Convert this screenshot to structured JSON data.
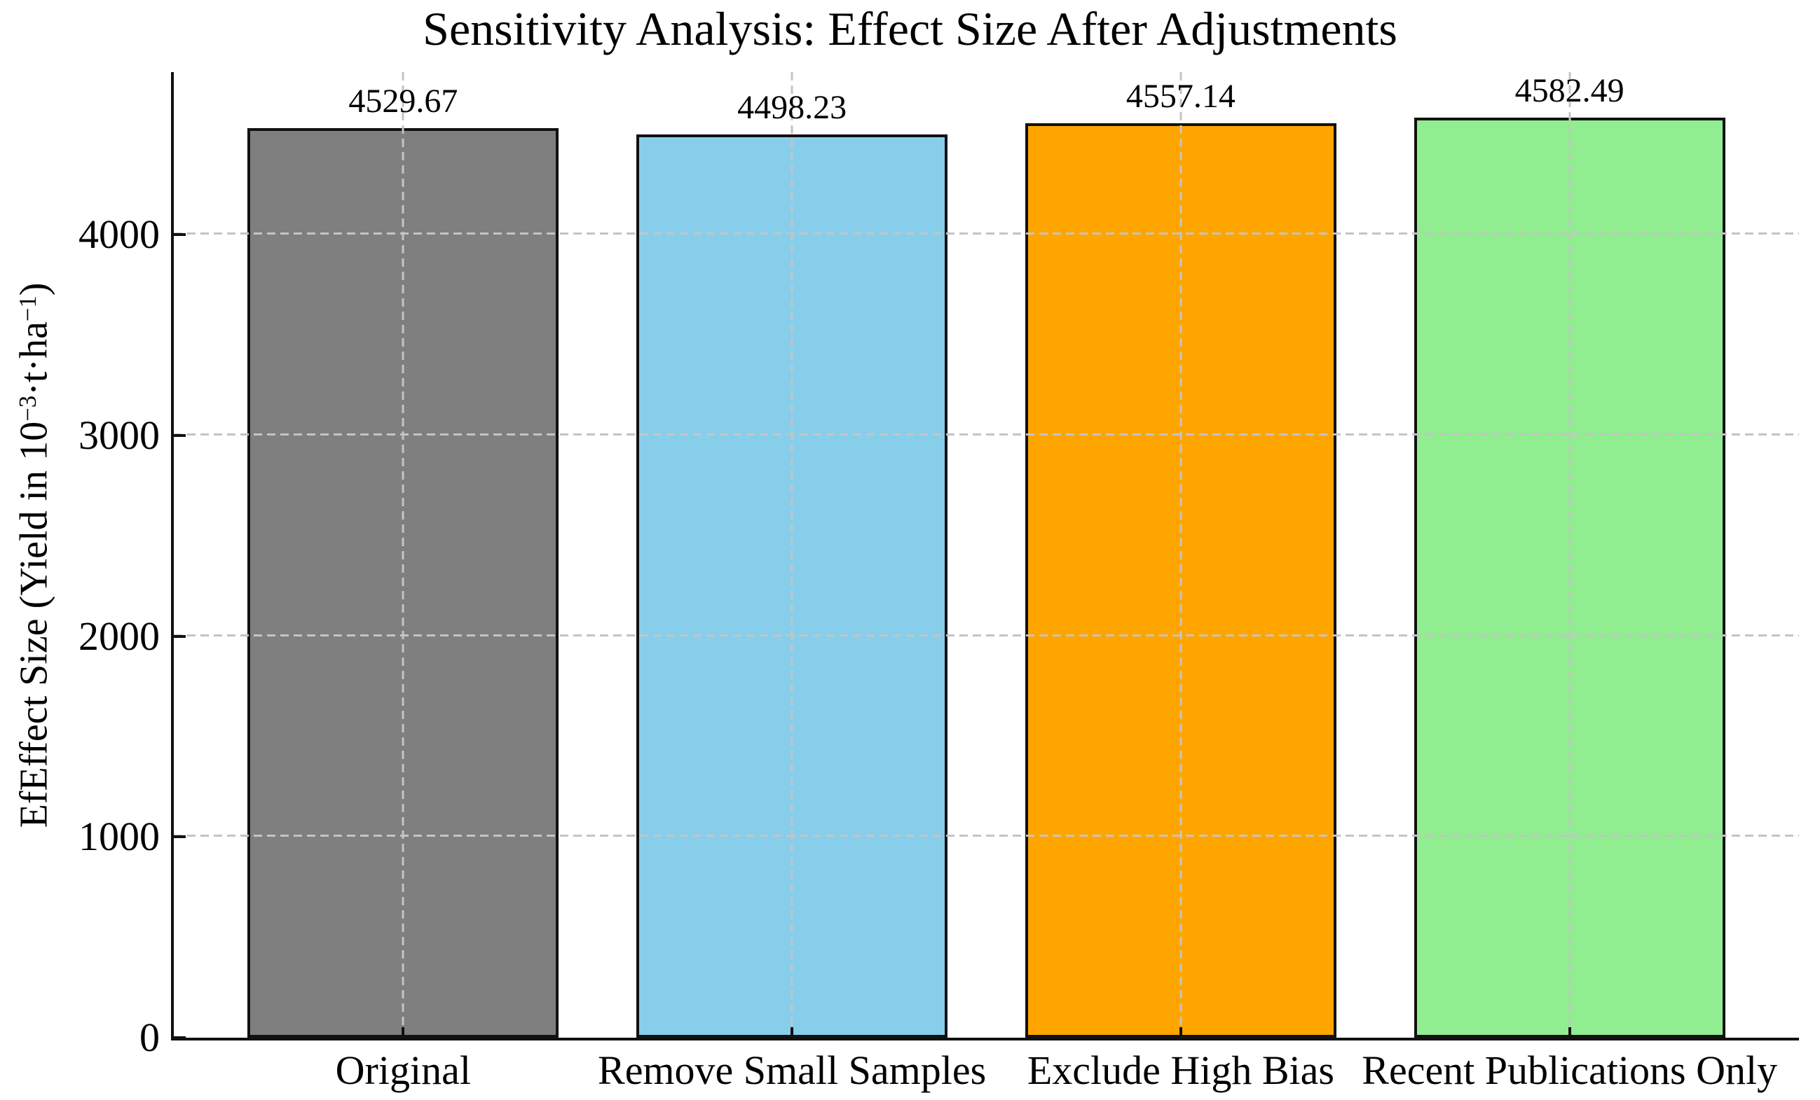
{
  "chart_data": {
    "type": "bar",
    "title": "Sensitivity Analysis: Effect Size After Adjustments",
    "categories": [
      "Original",
      "Remove Small Samples",
      "Exclude High Bias",
      "Recent Publications Only"
    ],
    "values": [
      4529.67,
      4498.23,
      4557.14,
      4582.49
    ],
    "value_labels": [
      "4529.67",
      "4498.23",
      "4557.14",
      "4582.49"
    ],
    "bar_colors": [
      "#7f7f7f",
      "#87ceeb",
      "#ffa500",
      "#90ee90"
    ],
    "bar_edge_color": "#111111",
    "xlabel": "",
    "ylabel": "EfEffect Size (Yield in 10⁻³·t·ha⁻¹)",
    "ylabel_parts": {
      "p1": "EfEffect Size (Yield in 10",
      "s1": "−3",
      "p2": "·t·ha",
      "s2": "−1",
      "p3": ")"
    },
    "yticks": [
      0,
      1000,
      2000,
      3000,
      4000
    ],
    "ytick_labels": [
      "0",
      "1000",
      "2000",
      "3000",
      "4000"
    ],
    "ylim": [
      0,
      4810
    ],
    "grid": "dashed gridlines on both axes, light gray, drawn over bars",
    "grid_color": "#c4c4c4",
    "legend": "none",
    "background_color": "#ffffff",
    "text_color": "#000000"
  }
}
